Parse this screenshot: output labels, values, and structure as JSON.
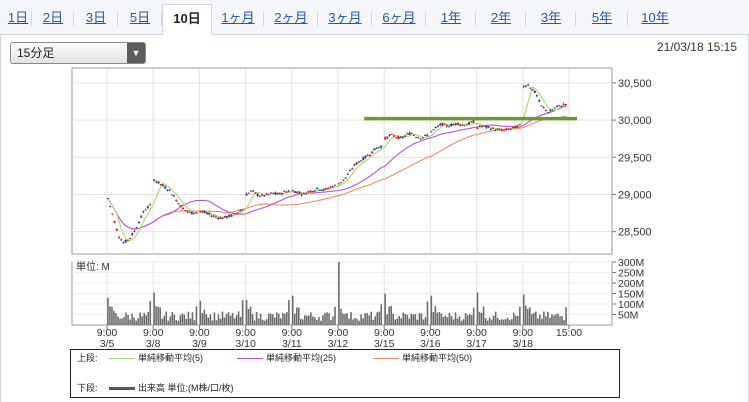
{
  "tabs": [
    {
      "label": "1日",
      "active": false
    },
    {
      "label": "2日",
      "active": false
    },
    {
      "label": "3日",
      "active": false
    },
    {
      "label": "5日",
      "active": false
    },
    {
      "label": "10日",
      "active": true
    },
    {
      "label": "1ヶ月",
      "active": false
    },
    {
      "label": "2ヶ月",
      "active": false
    },
    {
      "label": "3ヶ月",
      "active": false
    },
    {
      "label": "6ヶ月",
      "active": false
    },
    {
      "label": "1年",
      "active": false
    },
    {
      "label": "2年",
      "active": false
    },
    {
      "label": "3年",
      "active": false
    },
    {
      "label": "5年",
      "active": false
    },
    {
      "label": "10年",
      "active": false
    }
  ],
  "interval_select": {
    "value": "15分足"
  },
  "timestamp": "21/03/18 15:15",
  "volume_unit_label": "単位: M",
  "legend": {
    "upper_label": "上段:",
    "lower_label": "下段:",
    "ma5": "単純移動平均(5)",
    "ma25": "単純移動平均(25)",
    "ma50": "単純移動平均(50)",
    "volume": "出来高 単位:(M株/口/枚)"
  },
  "colors": {
    "up": "#d7191c",
    "down": "#1f3f8f",
    "ma5": "#a6d96a",
    "ma25": "#b455d8",
    "ma50": "#f08a6c",
    "resistance": "#6a9a2e",
    "volume": "#6d6d6d",
    "tab_link": "#2458a8"
  },
  "chart_data": {
    "type": "candlestick",
    "price_axis": {
      "ticks": [
        28500,
        29000,
        29500,
        30000,
        30500
      ],
      "tick_labels": [
        "28,500",
        "29,000",
        "29,500",
        "30,000",
        "30,500"
      ],
      "ylim": [
        28200,
        30700
      ]
    },
    "volume_axis": {
      "ticks": [
        50,
        100,
        150,
        200,
        250,
        300
      ],
      "tick_labels": [
        "50M",
        "100M",
        "150M",
        "200M",
        "250M",
        "300M"
      ],
      "ylim": [
        0,
        300
      ]
    },
    "x_ticks": [
      {
        "time": "9:00",
        "date": "3/5"
      },
      {
        "time": "9:00",
        "date": "3/8"
      },
      {
        "time": "9:00",
        "date": "3/9"
      },
      {
        "time": "9:00",
        "date": "3/10"
      },
      {
        "time": "9:00",
        "date": "3/11"
      },
      {
        "time": "9:00",
        "date": "3/12"
      },
      {
        "time": "9:00",
        "date": "3/15"
      },
      {
        "time": "9:00",
        "date": "3/16"
      },
      {
        "time": "9:00",
        "date": "3/17"
      },
      {
        "time": "9:00",
        "date": "3/18"
      },
      {
        "time": "15:00",
        "date": ""
      }
    ],
    "days": [
      "3/5",
      "3/8",
      "3/9",
      "3/10",
      "3/11",
      "3/12",
      "3/15",
      "3/16",
      "3/17",
      "3/18"
    ],
    "day_close_path": [
      [
        28950,
        28700,
        28450,
        28350,
        28400,
        28500,
        28650,
        28800,
        28850
      ],
      [
        29200,
        29150,
        29100,
        29050,
        28950,
        28850,
        28780,
        28750,
        28760
      ],
      [
        28780,
        28750,
        28720,
        28700,
        28680,
        28700,
        28720,
        28760,
        28800
      ],
      [
        29000,
        29050,
        29000,
        28980,
        29000,
        29020,
        29000,
        29030,
        29050
      ],
      [
        29050,
        29030,
        29000,
        29040,
        29060,
        29080,
        29060,
        29100,
        29120
      ],
      [
        29150,
        29200,
        29300,
        29400,
        29450,
        29500,
        29550,
        29620,
        29650
      ],
      [
        29750,
        29800,
        29780,
        29750,
        29800,
        29830,
        29780,
        29760,
        29800
      ],
      [
        29850,
        29900,
        29950,
        29920,
        29940,
        29960,
        29930,
        29950,
        29980
      ],
      [
        29900,
        29920,
        29900,
        29880,
        29870,
        29860,
        29880,
        29900,
        29930
      ],
      [
        30450,
        30480,
        30420,
        30350,
        30200,
        30150,
        30100,
        30150,
        30180,
        30200,
        30220
      ]
    ],
    "volume_open_spike": [
      130,
      155,
      115,
      120,
      140,
      300,
      150,
      140,
      155,
      145
    ],
    "resistance_level": 30020,
    "resistance_range_days": [
      6,
      10
    ]
  }
}
